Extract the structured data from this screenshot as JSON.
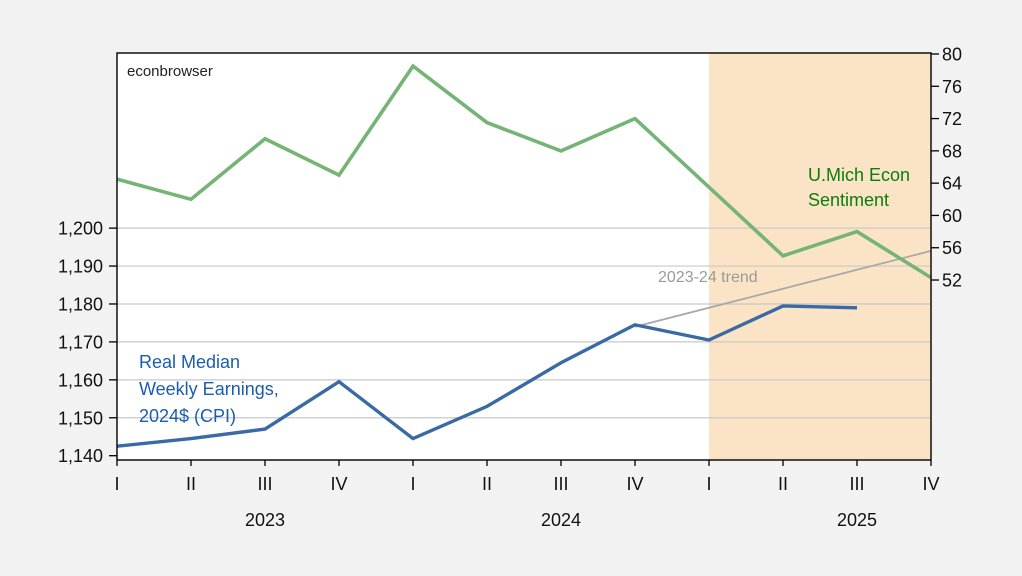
{
  "labels": {
    "watermark": "econbrowser",
    "sentiment_line1": "U.Mich Econ",
    "sentiment_line2": "Sentiment",
    "earnings_line1": "Real Median",
    "earnings_line2": "Weekly Earnings,",
    "earnings_line3": "2024$ (CPI)",
    "trend": "2023-24 trend"
  },
  "colors": {
    "background": "#f2f2f2",
    "plot_background": "#ffffff",
    "forecast_shading": "#fbe3c5",
    "gridline": "#c9c9c9",
    "axis": "#000000",
    "tick_text": "#111111",
    "watermark_text": "#222222",
    "earnings_text": "#1b5cb3",
    "sentiment_text": "#0a7e0a",
    "trend_text": "#9a9a9a"
  },
  "chart_data": {
    "type": "line",
    "categories": [
      "2023 Q1",
      "2023 Q2",
      "2023 Q3",
      "2023 Q4",
      "2024 Q1",
      "2024 Q2",
      "2024 Q3",
      "2024 Q4",
      "2025 Q1",
      "2025 Q2",
      "2025 Q3",
      "2025 Q4"
    ],
    "x_tick_labels": [
      "I",
      "II",
      "III",
      "IV",
      "I",
      "II",
      "III",
      "IV",
      "I",
      "II",
      "III",
      "IV"
    ],
    "year_labels": [
      {
        "text": "2023",
        "quarter_index": 2
      },
      {
        "text": "2024",
        "quarter_index": 6
      },
      {
        "text": "2025",
        "quarter_index": 10
      }
    ],
    "series": [
      {
        "name": "Real Median Weekly Earnings, 2024$ (CPI)",
        "axis": "left",
        "color": "#3a6aa4",
        "values": [
          1142.5,
          1144.5,
          1147,
          1159.5,
          1144.5,
          1153,
          1164.5,
          1174.5,
          1170.5,
          1179.5,
          1179,
          null
        ]
      },
      {
        "name": "U.Mich Econ Sentiment",
        "axis": "right",
        "color": "#76b476",
        "values": [
          64.5,
          62,
          69.5,
          65,
          78.5,
          71.5,
          68,
          72,
          63.5,
          55,
          58,
          52.3
        ]
      },
      {
        "name": "2023-24 trend",
        "axis": "left",
        "color": "#a9a9a9",
        "values": [
          null,
          null,
          null,
          null,
          null,
          null,
          null,
          1174,
          1179,
          1184,
          1189,
          1194
        ]
      }
    ],
    "left_axis": {
      "tick_values": [
        1140,
        1150,
        1160,
        1170,
        1180,
        1190,
        1200
      ],
      "tick_labels": [
        "1,140",
        "1,150",
        "1,160",
        "1,170",
        "1,180",
        "1,190",
        "1,200"
      ]
    },
    "right_axis": {
      "tick_values": [
        52,
        56,
        60,
        64,
        68,
        72,
        76,
        80
      ],
      "tick_labels": [
        "52",
        "56",
        "60",
        "64",
        "68",
        "72",
        "76",
        "80"
      ]
    },
    "shaded_region": {
      "from_category": "2025 Q1",
      "to_category": "2025 Q4"
    },
    "grid": "horizontal-left-axis",
    "legend_position": "in-plot text annotations"
  }
}
